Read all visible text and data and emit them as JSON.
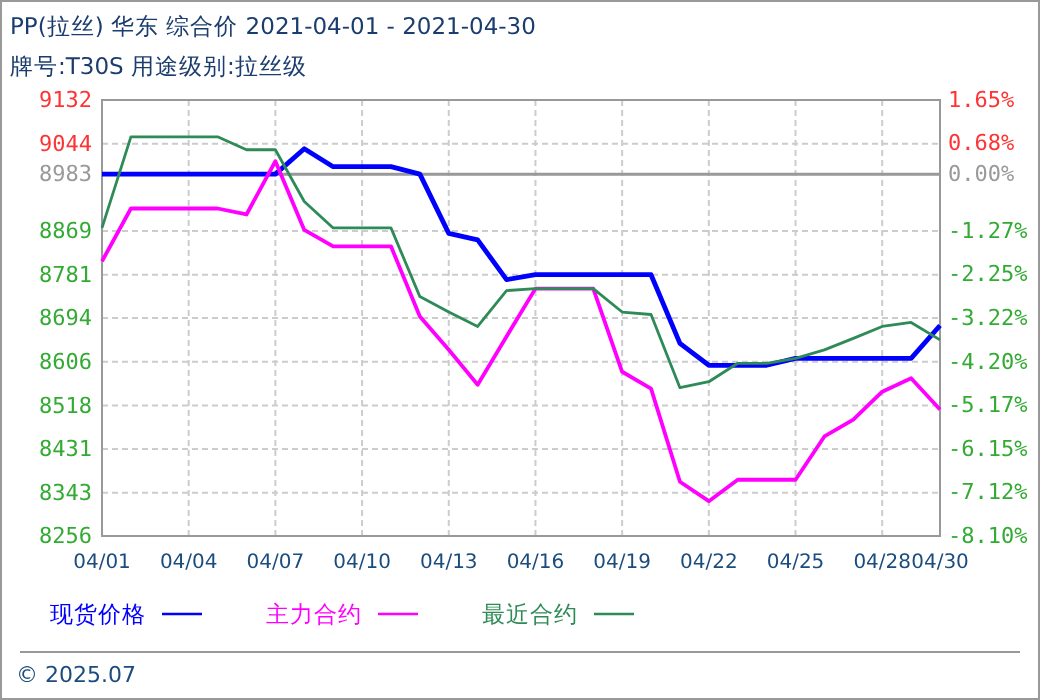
{
  "chart_data": {
    "type": "line",
    "title": "PP(拉丝) 华东 综合价 2021-04-01 - 2021-04-30",
    "subtitle": "牌号:T30S 用途级别:拉丝级",
    "x": [
      "--04-01",
      "--04-02",
      "--04-03",
      "--04-04",
      "--04-05",
      "--04-06",
      "--04-07",
      "--04-08",
      "--04-09",
      "--04-10",
      "--04-11",
      "--04-12",
      "--04-13",
      "--04-14",
      "--04-15",
      "--04-16",
      "--04-17",
      "--04-18",
      "--04-19",
      "--04-20",
      "--04-21",
      "--04-22",
      "--04-23",
      "--04-24",
      "--04-25",
      "--04-26",
      "--04-27",
      "--04-28",
      "--04-29",
      "--04-30"
    ],
    "series": [
      {
        "name": "现货价格",
        "color": "#0000ff",
        "values": [
          8983,
          8983,
          8983,
          8983,
          8983,
          8983,
          8983,
          9034,
          8998,
          8998,
          8998,
          8983,
          8864,
          8851,
          8771,
          8781,
          8781,
          8781,
          8781,
          8781,
          8643,
          8599,
          8599,
          8599,
          8613,
          8613,
          8613,
          8613,
          8613,
          8679
        ]
      },
      {
        "name": "主力合约",
        "color": "#ff00ff",
        "values": [
          8808,
          8914,
          8914,
          8914,
          8914,
          8902,
          9009,
          8871,
          8838,
          8838,
          8838,
          8697,
          8630,
          8560,
          8657,
          8753,
          8753,
          8753,
          8586,
          8552,
          8365,
          8326,
          8369,
          8369,
          8369,
          8456,
          8490,
          8546,
          8573,
          8510
        ]
      },
      {
        "name": "最近合约",
        "color": "#2e8b57",
        "values": [
          8875,
          9058,
          9058,
          9058,
          9058,
          9032,
          9032,
          8928,
          8875,
          8875,
          8875,
          8737,
          8706,
          8677,
          8749,
          8753,
          8753,
          8753,
          8706,
          8701,
          8554,
          8566,
          8603,
          8603,
          8613,
          8630,
          8653,
          8677,
          8685,
          8650
        ]
      }
    ],
    "xlim": [
      "--04-01",
      "--04-30"
    ],
    "xticks": [
      {
        "value": "--04-01",
        "label": "04/01"
      },
      {
        "value": "--04-04",
        "label": "04/04"
      },
      {
        "value": "--04-07",
        "label": "04/07"
      },
      {
        "value": "--04-10",
        "label": "04/10"
      },
      {
        "value": "--04-13",
        "label": "04/13"
      },
      {
        "value": "--04-16",
        "label": "04/16"
      },
      {
        "value": "--04-19",
        "label": "04/19"
      },
      {
        "value": "--04-22",
        "label": "04/22"
      },
      {
        "value": "--04-25",
        "label": "04/25"
      },
      {
        "value": "--04-28",
        "label": "04/28"
      },
      {
        "value": "--04-30",
        "label": "04/30"
      }
    ],
    "ylim": [
      8256,
      9132
    ],
    "yticks": [
      9132,
      9044,
      8983,
      8869,
      8781,
      8694,
      8606,
      8518,
      8431,
      8343,
      8256
    ],
    "y2lim": [
      -8.1,
      1.65
    ],
    "y2ticks": [
      {
        "value": 1.65,
        "label": "1.65%"
      },
      {
        "value": 0.68,
        "label": "0.68%"
      },
      {
        "value": 0,
        "label": "0.00%"
      },
      {
        "value": -1.27,
        "label": "-1.27%"
      },
      {
        "value": -2.25,
        "label": "-2.25%"
      },
      {
        "value": -3.22,
        "label": "-3.22%"
      },
      {
        "value": -4.2,
        "label": "-4.20%"
      },
      {
        "value": -5.17,
        "label": "-5.17%"
      },
      {
        "value": -6.15,
        "label": "-6.15%"
      },
      {
        "value": -7.12,
        "label": "-7.12%"
      },
      {
        "value": -8.1,
        "label": "-8.10%"
      }
    ],
    "ref_lines": [
      {
        "axis": "y",
        "value": 8983,
        "color": "#999999"
      }
    ],
    "grid": true,
    "legend": "bottom",
    "marker": "none",
    "line_style": "solid",
    "annotations": [
      "© 2025.07"
    ]
  }
}
